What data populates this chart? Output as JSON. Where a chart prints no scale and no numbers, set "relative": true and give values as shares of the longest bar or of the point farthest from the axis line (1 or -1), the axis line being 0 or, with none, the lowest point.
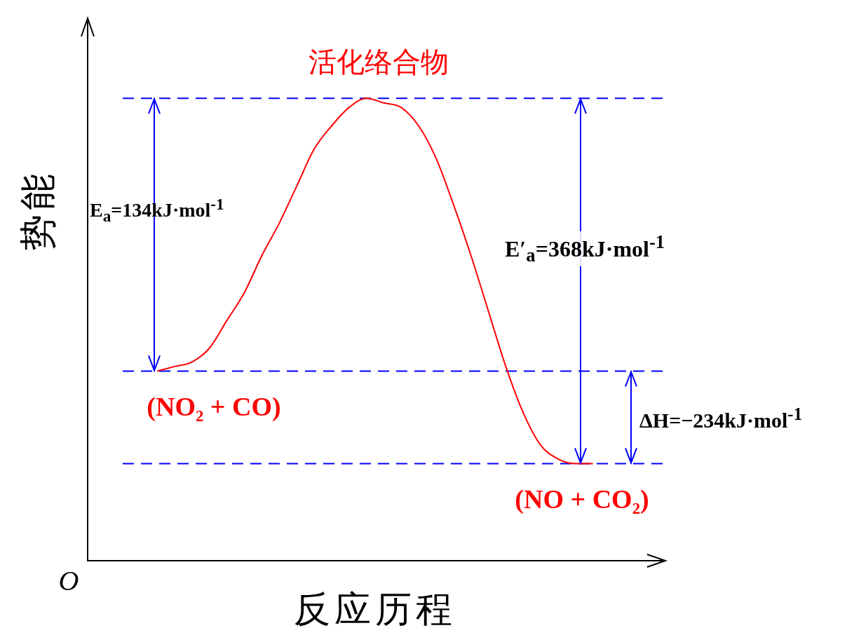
{
  "chart_data": {
    "type": "line",
    "relative": true,
    "xlabel": "反应历程",
    "ylabel": "势能",
    "legend": false,
    "marker": "none",
    "line_style": "solid",
    "categories": [
      null,
      null,
      null,
      null,
      null,
      null,
      null,
      null,
      null,
      null,
      null,
      null,
      null,
      null,
      null,
      null,
      null,
      null,
      null,
      null,
      null,
      null,
      null,
      null,
      null,
      null,
      null,
      null,
      null,
      null,
      null,
      null,
      null,
      null
    ],
    "series": [
      {
        "color": "#ff0000",
        "values": [
          null,
          null,
          null,
          null,
          0.41,
          0.42,
          0.43,
          0.46,
          0.52,
          0.58,
          0.66,
          0.73,
          0.81,
          0.89,
          0.94,
          0.98,
          1.0,
          0.99,
          0.98,
          0.94,
          0.87,
          0.77,
          0.66,
          0.54,
          0.42,
          0.32,
          0.25,
          0.22,
          0.21,
          0.21,
          null,
          null,
          null,
          null
        ]
      }
    ],
    "ref_lines": [
      {
        "axis": "y",
        "value": 1.0,
        "color": "#0000ff",
        "line_style": "dashed"
      },
      {
        "axis": "y",
        "value": 0.41,
        "color": "#0000ff",
        "line_style": "dashed"
      },
      {
        "axis": "y",
        "value": 0.21,
        "color": "#0000ff",
        "line_style": "dashed"
      }
    ],
    "annotations": [
      "活化络合物",
      "(NO₂ + CO)",
      "(NO + CO₂)",
      "E$_{a}$=134kJ·mol$^{-1}$",
      "E′$_{a}$=368kJ·mol$^{-1}$",
      "ΔH=−234kJ·mol$^{-1}$",
      "O"
    ]
  }
}
